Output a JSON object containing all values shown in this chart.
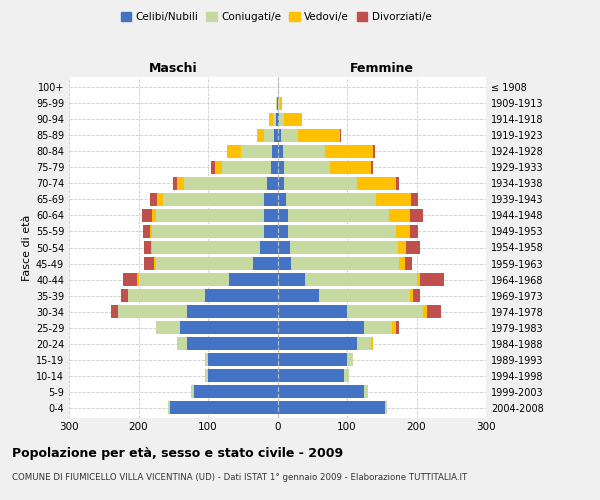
{
  "age_groups": [
    "0-4",
    "5-9",
    "10-14",
    "15-19",
    "20-24",
    "25-29",
    "30-34",
    "35-39",
    "40-44",
    "45-49",
    "50-54",
    "55-59",
    "60-64",
    "65-69",
    "70-74",
    "75-79",
    "80-84",
    "85-89",
    "90-94",
    "95-99",
    "100+"
  ],
  "birth_years": [
    "2004-2008",
    "1999-2003",
    "1994-1998",
    "1989-1993",
    "1984-1988",
    "1979-1983",
    "1974-1978",
    "1969-1973",
    "1964-1968",
    "1959-1963",
    "1954-1958",
    "1949-1953",
    "1944-1948",
    "1939-1943",
    "1934-1938",
    "1929-1933",
    "1924-1928",
    "1919-1923",
    "1914-1918",
    "1909-1913",
    "≤ 1908"
  ],
  "males": {
    "celibi": [
      155,
      120,
      100,
      100,
      130,
      140,
      130,
      105,
      70,
      35,
      25,
      20,
      20,
      20,
      15,
      10,
      8,
      5,
      2,
      1,
      0
    ],
    "coniugati": [
      2,
      5,
      5,
      5,
      15,
      35,
      100,
      110,
      130,
      140,
      155,
      160,
      155,
      145,
      120,
      70,
      45,
      15,
      5,
      1,
      0
    ],
    "vedovi": [
      0,
      0,
      0,
      0,
      0,
      0,
      0,
      0,
      2,
      2,
      2,
      3,
      5,
      8,
      10,
      10,
      20,
      10,
      5,
      0,
      0
    ],
    "divorziati": [
      0,
      0,
      0,
      0,
      0,
      0,
      10,
      10,
      20,
      15,
      10,
      10,
      15,
      10,
      5,
      5,
      0,
      0,
      0,
      0,
      0
    ]
  },
  "females": {
    "nubili": [
      155,
      125,
      95,
      100,
      115,
      125,
      100,
      60,
      40,
      20,
      18,
      15,
      15,
      12,
      10,
      10,
      8,
      5,
      2,
      1,
      0
    ],
    "coniugate": [
      2,
      5,
      8,
      8,
      20,
      40,
      110,
      130,
      160,
      155,
      155,
      155,
      145,
      130,
      105,
      65,
      60,
      25,
      8,
      2,
      0
    ],
    "vedove": [
      0,
      0,
      0,
      0,
      2,
      5,
      5,
      5,
      5,
      8,
      12,
      20,
      30,
      50,
      55,
      60,
      70,
      60,
      25,
      3,
      0
    ],
    "divorziate": [
      0,
      0,
      0,
      0,
      0,
      5,
      20,
      10,
      35,
      10,
      20,
      12,
      20,
      10,
      5,
      2,
      2,
      2,
      0,
      0,
      0
    ]
  },
  "colors": {
    "celibi": "#4472c4",
    "coniugati": "#c5d9a0",
    "vedovi": "#ffc000",
    "divorziati": "#c0504d"
  },
  "xlim": 300,
  "title": "Popolazione per età, sesso e stato civile - 2009",
  "subtitle": "COMUNE DI FIUMICELLO VILLA VICENTINA (UD) - Dati ISTAT 1° gennaio 2009 - Elaborazione TUTTITALIA.IT",
  "ylabel_left": "Fasce di età",
  "xlabel_left": "Maschi",
  "xlabel_right": "Femmine",
  "legend_labels": [
    "Celibi/Nubili",
    "Coniugati/e",
    "Vedovi/e",
    "Divorziati/e"
  ],
  "bg_color": "#f0f0f0",
  "plot_bg_color": "#ffffff"
}
